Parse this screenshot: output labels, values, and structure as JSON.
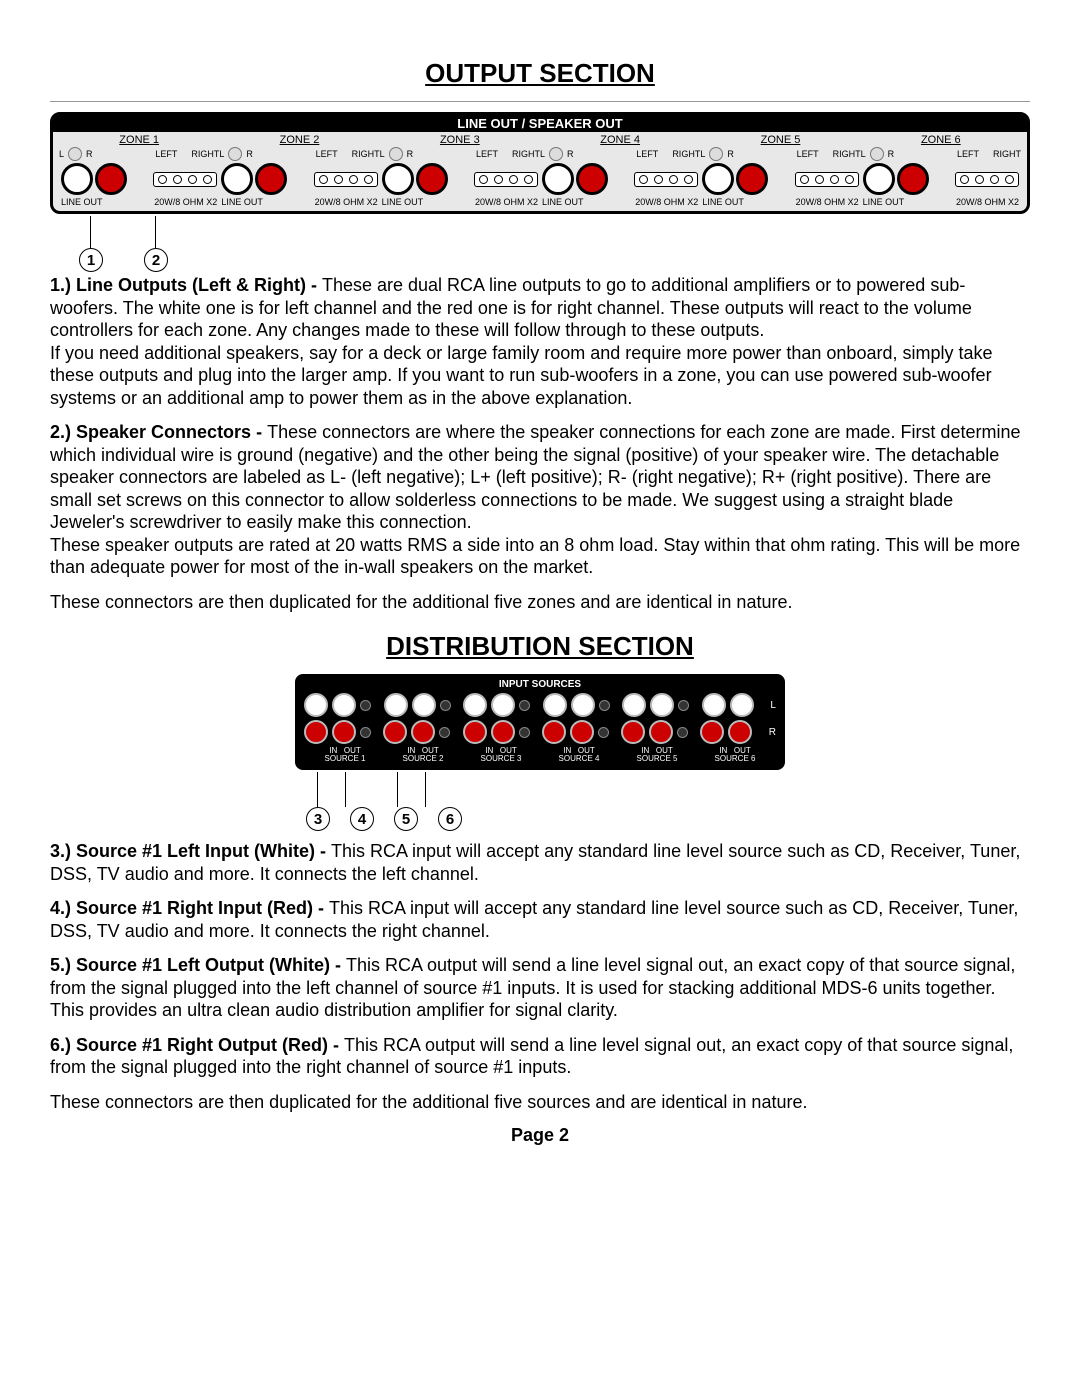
{
  "title1": "OUTPUT SECTION",
  "panel1_header": "LINE OUT / SPEAKER OUT",
  "zones": [
    {
      "name": "ZONE 1"
    },
    {
      "name": "ZONE 2"
    },
    {
      "name": "ZONE 3"
    },
    {
      "name": "ZONE 4"
    },
    {
      "name": "ZONE 5"
    },
    {
      "name": "ZONE 6"
    }
  ],
  "zone_sub": {
    "l": "L",
    "r": "R",
    "left": "LEFT",
    "right": "RIGHT",
    "lineout": "LINE OUT",
    "spk": "20W/8 OHM X2"
  },
  "callouts1": {
    "c1": "1",
    "c2": "2"
  },
  "p1_head": "1.) Line Outputs (Left & Right) - ",
  "p1": "These are dual RCA line outputs to go to additional amplifiers or to powered sub-woofers. The white one is for left channel and the red one is for right channel. These outputs will react to the volume controllers for each zone. Any changes made to these will follow through to these outputs.",
  "p1b": "If you need additional speakers, say for a deck or large family room and require more power than onboard, simply take these outputs and plug into the larger amp. If you want to run sub-woofers in a zone, you can use powered sub-woofer systems or an additional amp to power them as in the above explanation.",
  "p2_head": "2.) Speaker Connectors - ",
  "p2": "These connectors are where the speaker connections for each zone are made. First determine which individual wire is ground (negative) and the other being the signal (positive) of your speaker wire. The detachable speaker connectors are labeled as L- (left negative); L+ (left positive); R- (right negative); R+ (right positive). There are small set screws on this connector to allow solderless connections to be made. We suggest using a straight blade Jeweler's screwdriver to easily  make this connection.",
  "p2b": "These speaker outputs are rated at 20 watts RMS a side into an 8 ohm load. Stay within that ohm rating. This will be more than adequate power for most of the in-wall speakers on the market.",
  "p2c": "These connectors are then duplicated for the additional five zones and are identical in nature.",
  "title2": "DISTRIBUTION SECTION",
  "panel2_header": "INPUT SOURCES",
  "sources": [
    {
      "name": "SOURCE 1"
    },
    {
      "name": "SOURCE 2"
    },
    {
      "name": "SOURCE 3"
    },
    {
      "name": "SOURCE 4"
    },
    {
      "name": "SOURCE 5"
    },
    {
      "name": "SOURCE 6"
    }
  ],
  "src_sub": {
    "in": "IN",
    "out": "OUT",
    "L": "L",
    "R": "R"
  },
  "callouts2": {
    "c3": "3",
    "c4": "4",
    "c5": "5",
    "c6": "6"
  },
  "p3_head": "3.) Source  #1 Left Input (White) - ",
  "p3": "This RCA input will accept any standard line level source such as CD, Receiver, Tuner, DSS, TV audio and more. It connects the left channel.",
  "p4_head": "4.) Source  #1 Right Input (Red) - ",
  "p4": "This RCA input will accept any standard line level source such as CD, Receiver, Tuner, DSS, TV audio and more. It connects the right channel.",
  "p5_head": "5.) Source  #1 Left Output (White) - ",
  "p5": "This RCA output will send a line level signal out, an exact copy of that source signal,  from the signal plugged into the left channel of source #1 inputs. It  is used for stacking additional MDS-6 units together. This provides an ultra clean audio distribution amplifier for signal clarity.",
  "p6_head": "6.) Source  #1 Right Output (Red) - ",
  "p6": "This RCA output will send a line level signal out, an exact copy of that source signal,  from the signal plugged into the right channel of source #1 inputs.",
  "p7": "These connectors are then duplicated for the additional five sources and are identical in nature.",
  "pagenum": "Page 2"
}
